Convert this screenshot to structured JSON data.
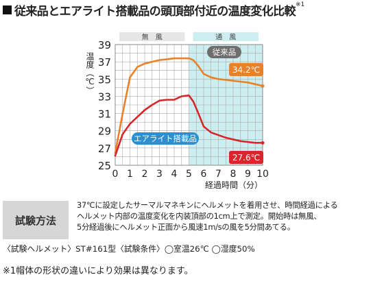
{
  "title": {
    "text": "従来品とエアライト搭載品の頭頂部付近の温度変化比較",
    "note_mark": "※1"
  },
  "chart_data": {
    "type": "line",
    "ylabel": "温度（℃）",
    "xlabel": "経過時間（分）",
    "x_ticks": [
      "0",
      "1",
      "2",
      "3",
      "4",
      "5",
      "6",
      "7",
      "8",
      "9",
      "10"
    ],
    "y_ticks": [
      "39",
      "37",
      "35",
      "33",
      "31",
      "29",
      "27",
      "25"
    ],
    "xlim": [
      0,
      10
    ],
    "ylim": [
      25,
      39
    ],
    "grid": true,
    "regions": [
      {
        "label": "無　風",
        "x_range": [
          0,
          5
        ],
        "color": "#ffffff"
      },
      {
        "label": "通　風",
        "x_range": [
          5,
          10
        ],
        "color": "#cdeef0"
      }
    ],
    "series": [
      {
        "name": "従来品",
        "color": "#e8822a",
        "end_label": "34.2℃",
        "x": [
          0,
          0.5,
          1,
          1.5,
          2,
          2.5,
          3,
          3.5,
          4,
          4.5,
          5,
          5.3,
          5.6,
          6,
          6.5,
          7,
          7.5,
          8,
          8.5,
          9,
          9.5,
          10
        ],
        "y": [
          26.4,
          31.0,
          35.2,
          36.4,
          36.8,
          37.0,
          37.2,
          37.3,
          37.4,
          37.4,
          37.4,
          37.2,
          36.6,
          35.6,
          35.2,
          35.0,
          34.9,
          34.8,
          34.7,
          34.6,
          34.4,
          34.2
        ]
      },
      {
        "name": "エアライト搭載品",
        "color": "#d9262b",
        "end_label": "27.6℃",
        "x": [
          0,
          0.5,
          1,
          1.5,
          2,
          2.5,
          3,
          3.5,
          4,
          4.5,
          5,
          5.3,
          5.6,
          6,
          6.5,
          7,
          7.5,
          8,
          8.5,
          9,
          9.5,
          10
        ],
        "y": [
          26.1,
          28.6,
          29.8,
          30.6,
          31.4,
          32.0,
          32.5,
          32.6,
          32.6,
          33.0,
          33.1,
          32.4,
          31.2,
          29.5,
          28.8,
          28.5,
          28.2,
          28.0,
          27.8,
          27.7,
          27.6,
          27.6
        ]
      }
    ]
  },
  "method": {
    "label": "試験方法",
    "lines": [
      "37℃に設定したサーマルマネキンにヘルメットを着用させ、時間経過による",
      "ヘルメット内部の温度変化を内装頂部の1cm上で測定。開始時は無風、",
      "5分経過後にヘルメット正面から風速1m/sの風を5分間あてる。"
    ]
  },
  "spec": "〈試験ヘルメット〉ST#161型〈試験条件〉◯室温26℃ ◯湿度50%",
  "note": "※1帽体の形状の違いにより効果は異なります。"
}
